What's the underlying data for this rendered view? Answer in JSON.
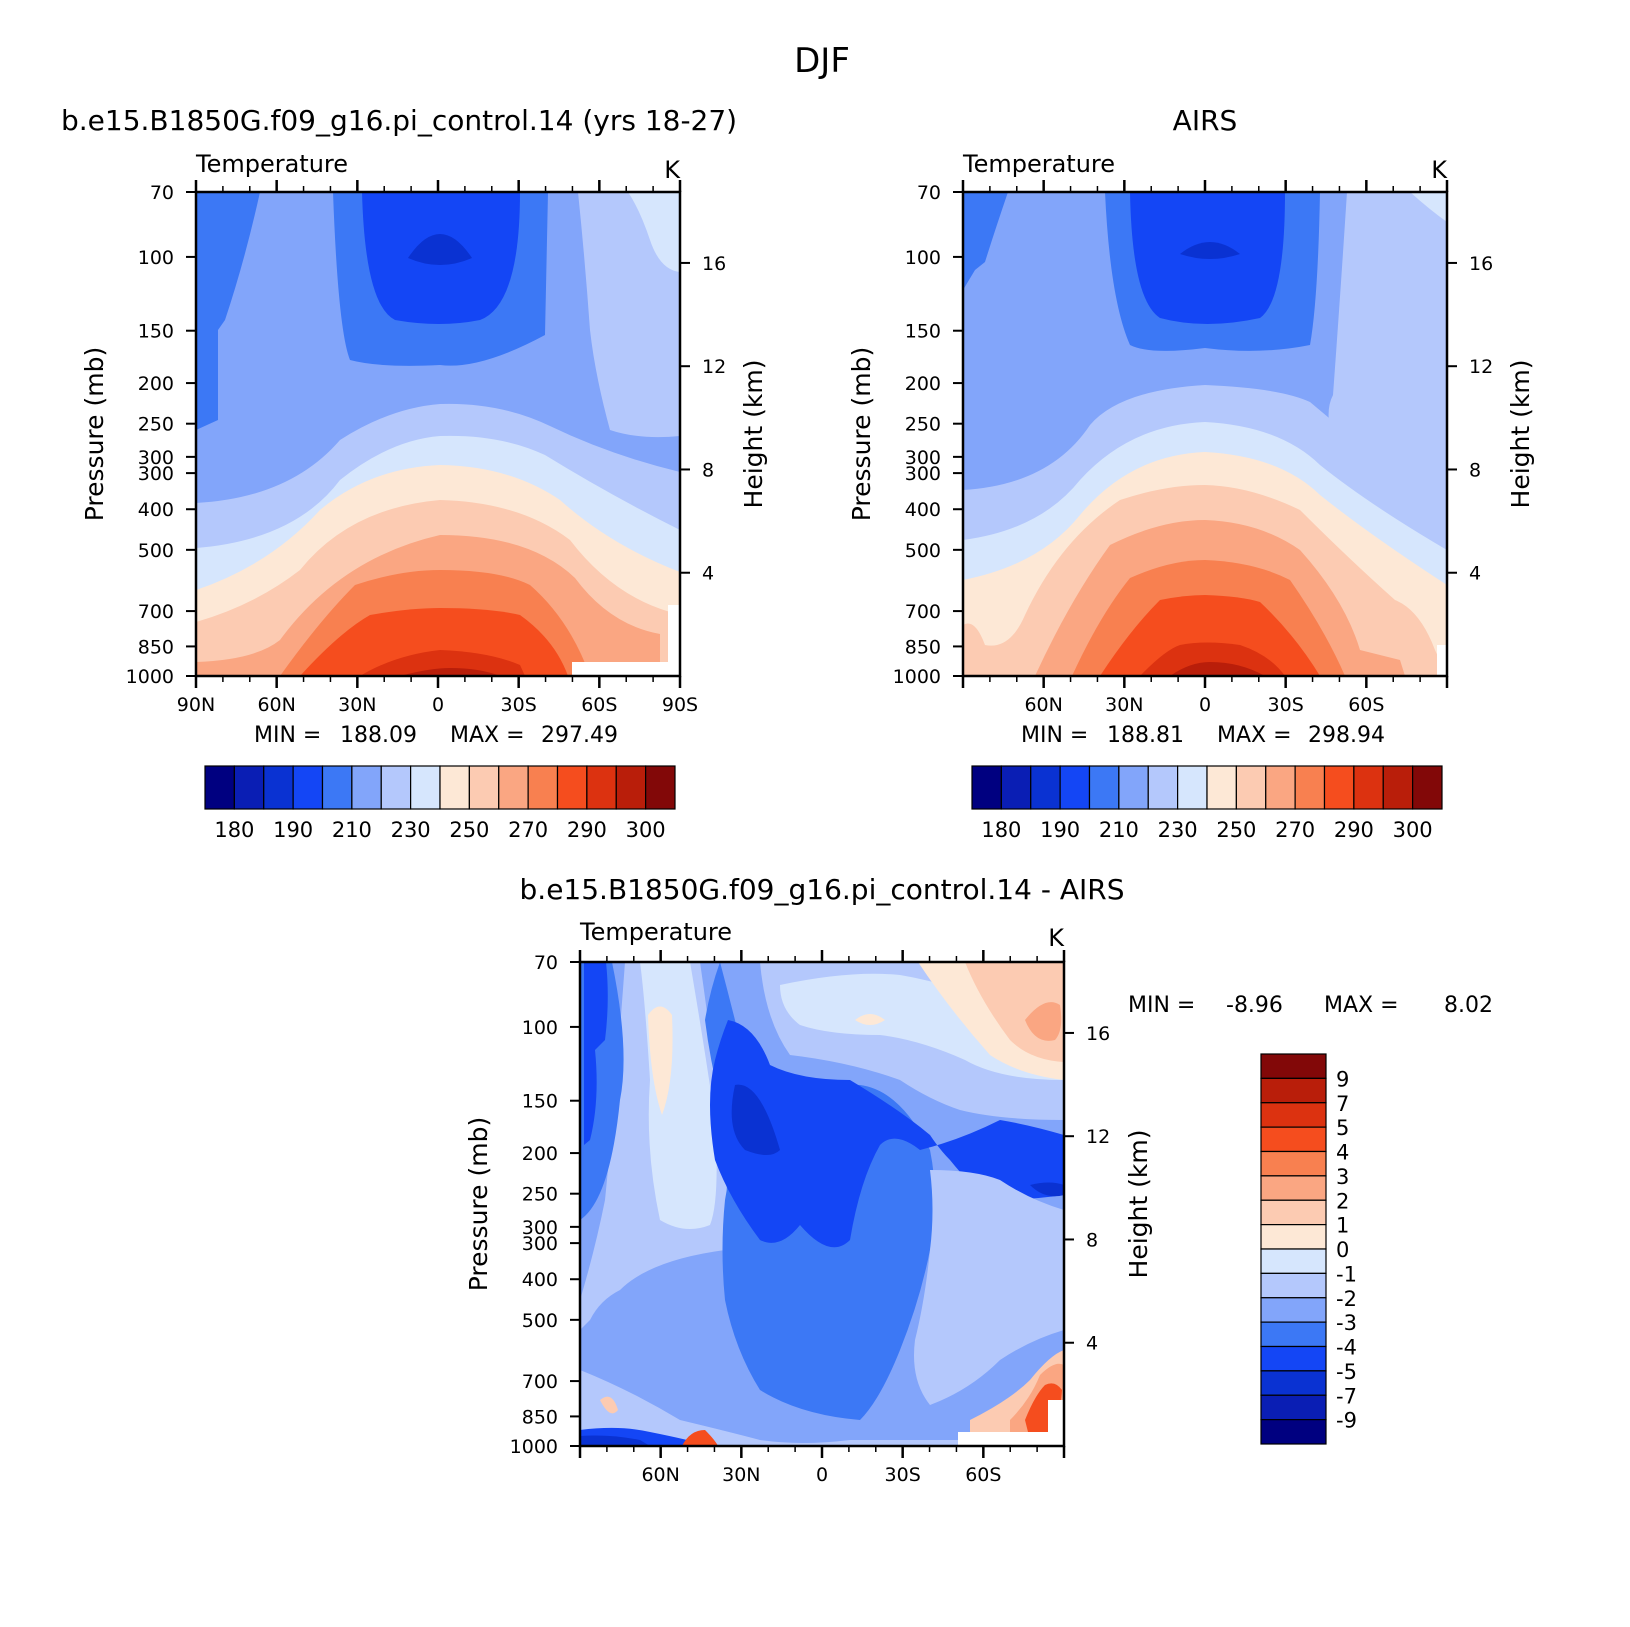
{
  "figure": {
    "title": "DJF"
  },
  "chart_data": [
    {
      "type": "heatmap",
      "title": "b.e15.B1850G.f09_g16.pi_control.14 (yrs 18-27)",
      "variable": "Temperature",
      "units": "K",
      "ylabel": "Pressure (mb)",
      "ylabel_right": "Height (km)",
      "x_ticks": [
        "90N",
        "60N",
        "30N",
        "0",
        "30S",
        "60S",
        "90S"
      ],
      "x_values": [
        90,
        60,
        30,
        0,
        -30,
        -60,
        -90
      ],
      "y_ticks": [
        "70",
        "100",
        "150",
        "200",
        "250",
        "300",
        "300",
        "400",
        "500",
        "700",
        "850",
        "1000"
      ],
      "y_values": [
        70,
        100,
        150,
        200,
        250,
        300,
        300,
        400,
        500,
        700,
        850,
        1000
      ],
      "height_ticks": [
        "16",
        "12",
        "8",
        "4"
      ],
      "height_values": [
        16,
        12,
        8,
        4
      ],
      "stats": {
        "min_label": "MIN =",
        "min": "188.09",
        "max_label": "MAX =",
        "max": "297.49"
      },
      "colorbar_labels": [
        "180",
        "190",
        "210",
        "230",
        "250",
        "270",
        "290",
        "300"
      ],
      "colorbar_levels": [
        180,
        185,
        190,
        200,
        210,
        220,
        230,
        240,
        250,
        260,
        270,
        280,
        290,
        295,
        300
      ]
    },
    {
      "type": "heatmap",
      "title": "AIRS",
      "variable": "Temperature",
      "units": "K",
      "ylabel": "Pressure (mb)",
      "ylabel_right": "Height (km)",
      "x_ticks": [
        "60N",
        "30N",
        "0",
        "30S",
        "60S"
      ],
      "x_values": [
        60,
        30,
        0,
        -30,
        -60
      ],
      "y_ticks": [
        "70",
        "100",
        "150",
        "200",
        "250",
        "300",
        "300",
        "400",
        "500",
        "700",
        "850",
        "1000"
      ],
      "y_values": [
        70,
        100,
        150,
        200,
        250,
        300,
        300,
        400,
        500,
        700,
        850,
        1000
      ],
      "height_ticks": [
        "16",
        "12",
        "8",
        "4"
      ],
      "height_values": [
        16,
        12,
        8,
        4
      ],
      "stats": {
        "min_label": "MIN =",
        "min": "188.81",
        "max_label": "MAX =",
        "max": "298.94"
      },
      "colorbar_labels": [
        "180",
        "190",
        "210",
        "230",
        "250",
        "270",
        "290",
        "300"
      ],
      "colorbar_levels": [
        180,
        185,
        190,
        200,
        210,
        220,
        230,
        240,
        250,
        260,
        270,
        280,
        290,
        295,
        300
      ]
    },
    {
      "type": "heatmap",
      "title": "b.e15.B1850G.f09_g16.pi_control.14 - AIRS",
      "variable": "Temperature",
      "units": "K",
      "ylabel": "Pressure (mb)",
      "ylabel_right": "Height (km)",
      "x_ticks": [
        "60N",
        "30N",
        "0",
        "30S",
        "60S"
      ],
      "x_values": [
        60,
        30,
        0,
        -30,
        -60
      ],
      "y_ticks": [
        "70",
        "100",
        "150",
        "200",
        "250",
        "300",
        "300",
        "400",
        "500",
        "700",
        "850",
        "1000"
      ],
      "y_values": [
        70,
        100,
        150,
        200,
        250,
        300,
        300,
        400,
        500,
        700,
        850,
        1000
      ],
      "height_ticks": [
        "16",
        "12",
        "8",
        "4"
      ],
      "height_values": [
        16,
        12,
        8,
        4
      ],
      "stats": {
        "min_label": "MIN =",
        "min": "-8.96",
        "max_label": "MAX =",
        "max": "8.02"
      },
      "colorbar_labels": [
        "9",
        "7",
        "5",
        "4",
        "3",
        "2",
        "1",
        "0",
        "-1",
        "-2",
        "-3",
        "-4",
        "-5",
        "-7",
        "-9"
      ],
      "colorbar_levels": [
        9,
        7,
        5,
        4,
        3,
        2,
        1,
        0,
        -1,
        -2,
        -3,
        -4,
        -5,
        -7,
        -9
      ]
    }
  ],
  "colors": {
    "abs_scale": [
      "#000080",
      "#0a1eb4",
      "#0a32d2",
      "#1446f5",
      "#3c78f5",
      "#82a5fa",
      "#b4c8fc",
      "#d6e6fd",
      "#fde8d6",
      "#fccbb2",
      "#faa682",
      "#f88050",
      "#f54d1e",
      "#dc3210",
      "#b91e0a",
      "#820808"
    ],
    "diff_scale": [
      "#820808",
      "#b91e0a",
      "#dc3210",
      "#f54d1e",
      "#f88050",
      "#faa682",
      "#fccbb2",
      "#fde8d6",
      "#d6e6fd",
      "#b4c8fc",
      "#82a5fa",
      "#3c78f5",
      "#1446f5",
      "#0a32d2",
      "#0a1eb4",
      "#000080"
    ]
  }
}
